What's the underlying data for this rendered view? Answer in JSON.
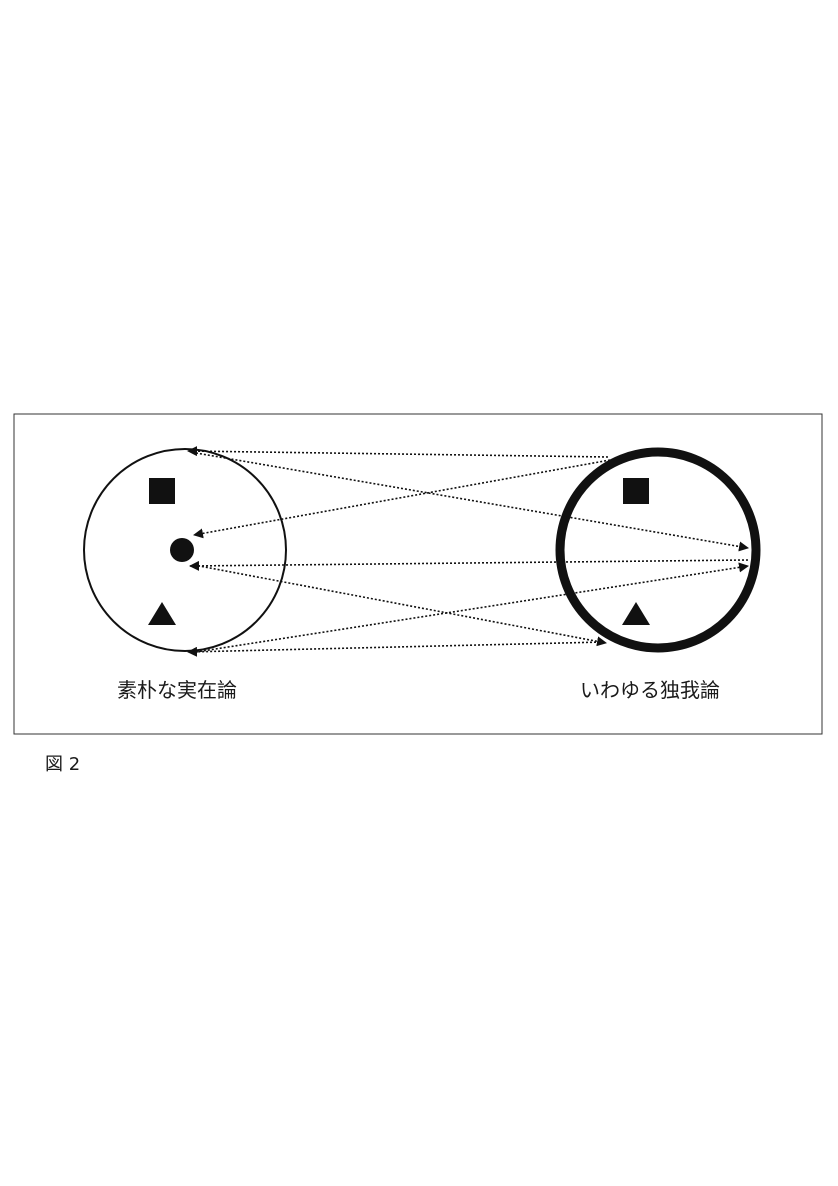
{
  "figure": {
    "caption": "図 2",
    "left_label": "素朴な実在論",
    "right_label": "いわゆる独我論",
    "left_circle_shapes": [
      "square",
      "circle",
      "triangle"
    ],
    "right_circle_shapes": [
      "square",
      "triangle"
    ],
    "connectors": "dotted-arrows"
  }
}
